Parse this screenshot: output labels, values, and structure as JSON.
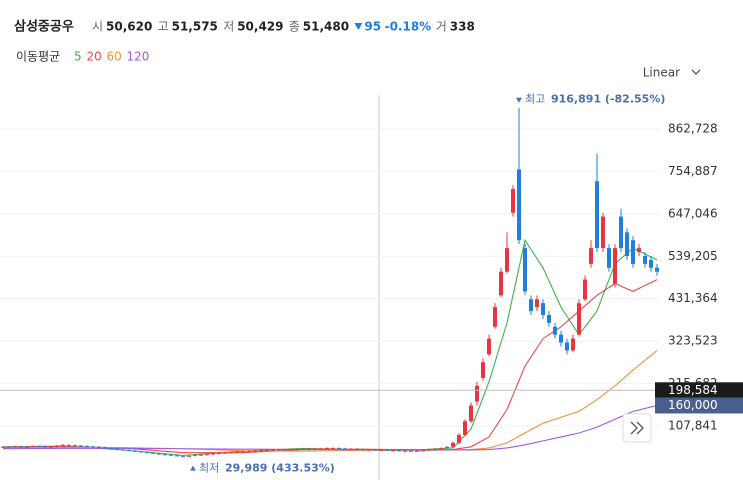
{
  "chart_data": {
    "type": "candlestick",
    "title": "삼성중공우",
    "quote": [
      {
        "label": "시",
        "value": "50,620"
      },
      {
        "label": "고",
        "value": "51,575"
      },
      {
        "label": "저",
        "value": "50,429"
      },
      {
        "label": "종",
        "value": "51,480"
      }
    ],
    "change": "95",
    "change_pct": "-0.18%",
    "volume_label": "거",
    "volume": "338",
    "ma_label": "이동평균",
    "scale_mode": "Linear",
    "max_label": "최고",
    "max_value_label": "916,891 (-82.55%)",
    "min_label": "최저",
    "min_value_label": "29,989 (433.53%)",
    "up_color": "#e8353f",
    "down_color": "#1f7fdc",
    "ylim": [
      -29411,
      949146
    ],
    "yticks": [
      {
        "value": 107841,
        "label": "107,841"
      },
      {
        "value": 215682,
        "label": "215,682"
      },
      {
        "value": 323523,
        "label": "323,523"
      },
      {
        "value": 431364,
        "label": "431,364"
      },
      {
        "value": 539205,
        "label": "539,205"
      },
      {
        "value": 647046,
        "label": "647,046"
      },
      {
        "value": 754887,
        "label": "754,887"
      },
      {
        "value": 862728,
        "label": "862,728"
      }
    ],
    "price_tags": [
      {
        "value": 198584,
        "label": "198,584",
        "color": "#1b1b1b"
      },
      {
        "value": 160000,
        "label": "160,000",
        "color": "#4a5f8f"
      }
    ],
    "open": [
      54000,
      55000,
      54000,
      56000,
      53000,
      55000,
      57000,
      56000,
      54000,
      55000,
      58000,
      60000,
      59000,
      58000,
      57000,
      56000,
      55000,
      54000,
      52000,
      50000,
      48000,
      47000,
      45000,
      43000,
      42000,
      40000,
      38000,
      36000,
      35000,
      33000,
      31000,
      30000,
      32000,
      34000,
      35000,
      36000,
      38000,
      39000,
      40000,
      41000,
      42000,
      43000,
      44000,
      45000,
      46000,
      47000,
      47000,
      48000,
      48000,
      49000,
      49000,
      50000,
      50000,
      51000,
      51000,
      52000,
      52000,
      51000,
      50000,
      50000,
      49000,
      48000,
      48000,
      47000,
      47000,
      46000,
      46000,
      45000,
      45000,
      44000,
      45000,
      46000,
      48000,
      50000,
      52000,
      55000,
      65000,
      85000,
      120000,
      170000,
      230000,
      290000,
      360000,
      440000,
      500000,
      650000,
      760000,
      560000,
      430000,
      410000,
      420000,
      390000,
      360000,
      340000,
      320000,
      300000,
      340000,
      430000,
      520000,
      730000,
      560000,
      560000,
      470000,
      640000,
      600000,
      580000,
      550000,
      540000,
      530000,
      510000
    ],
    "high": [
      56500,
      56500,
      57500,
      57500,
      56500,
      58500,
      58500,
      57500,
      56500,
      59500,
      61500,
      61500,
      60500,
      59500,
      58500,
      57500,
      56500,
      55500,
      53500,
      51500,
      49500,
      48500,
      46500,
      44500,
      43500,
      41500,
      39500,
      37500,
      36500,
      34500,
      32500,
      33500,
      35500,
      36500,
      37500,
      39500,
      40500,
      41500,
      42500,
      43500,
      44500,
      45500,
      46500,
      47500,
      48500,
      48500,
      49500,
      49500,
      50500,
      50500,
      51500,
      51500,
      52500,
      52500,
      53500,
      53500,
      53500,
      52500,
      51500,
      51500,
      50500,
      49500,
      49500,
      48500,
      48500,
      47500,
      47500,
      46500,
      46500,
      46500,
      47500,
      49500,
      51500,
      53500,
      56500,
      68000,
      90000,
      125000,
      168000,
      220000,
      280000,
      340000,
      420000,
      510000,
      600000,
      720000,
      916891,
      570000,
      440000,
      440000,
      430000,
      400000,
      370000,
      350000,
      330000,
      340000,
      430000,
      490000,
      580000,
      800000,
      650000,
      570000,
      570000,
      660000,
      610000,
      590000,
      570000,
      550000,
      540000,
      520000
    ],
    "low": [
      52500,
      52500,
      52500,
      51500,
      51500,
      53500,
      54500,
      52500,
      52500,
      53500,
      56500,
      57500,
      56500,
      55500,
      54500,
      53500,
      52500,
      50500,
      48500,
      46500,
      45500,
      43500,
      41500,
      40500,
      38500,
      36500,
      34500,
      33500,
      31500,
      30500,
      29989,
      30500,
      30500,
      32500,
      33500,
      34500,
      36500,
      37500,
      38500,
      39500,
      40500,
      41500,
      42500,
      43500,
      44500,
      45500,
      45500,
      46500,
      46500,
      47500,
      47500,
      48500,
      48500,
      49500,
      49500,
      50500,
      49500,
      48500,
      48500,
      47500,
      46500,
      46500,
      45500,
      45500,
      44500,
      44500,
      43500,
      43500,
      42500,
      42500,
      43500,
      44500,
      46500,
      48500,
      50500,
      52000,
      62000,
      82000,
      115000,
      160000,
      222000,
      285000,
      355000,
      435000,
      495000,
      640000,
      570000,
      440000,
      390000,
      400000,
      380000,
      360000,
      330000,
      310000,
      290000,
      295000,
      335000,
      425000,
      510000,
      550000,
      550000,
      500000,
      460000,
      550000,
      530000,
      510000,
      540000,
      510000,
      500000,
      490000
    ],
    "close": [
      55000,
      54000,
      56000,
      53000,
      55000,
      57000,
      56000,
      54000,
      55000,
      58000,
      60000,
      59000,
      58000,
      57000,
      56000,
      55000,
      54000,
      52000,
      50000,
      48000,
      47000,
      45000,
      43000,
      42000,
      40000,
      38000,
      36000,
      35000,
      33000,
      31000,
      30000,
      32000,
      34000,
      35000,
      36000,
      38000,
      39000,
      40000,
      41000,
      42000,
      43000,
      44000,
      45000,
      46000,
      47000,
      47000,
      48000,
      48000,
      49000,
      49000,
      50000,
      50000,
      51000,
      51000,
      52000,
      52000,
      51000,
      50000,
      50000,
      49000,
      48000,
      48000,
      47000,
      47000,
      46000,
      46000,
      45000,
      45000,
      44000,
      45000,
      46000,
      48000,
      50000,
      52000,
      55000,
      65000,
      85000,
      120000,
      160000,
      210000,
      270000,
      330000,
      410000,
      500000,
      560000,
      710000,
      580000,
      450000,
      400000,
      430000,
      390000,
      370000,
      340000,
      320000,
      300000,
      330000,
      420000,
      480000,
      560000,
      560000,
      640000,
      510000,
      560000,
      560000,
      540000,
      520000,
      560000,
      520000,
      510000,
      500000
    ],
    "ma_x": [
      0,
      10,
      20,
      30,
      40,
      50,
      60,
      70,
      75,
      78,
      81,
      84,
      87,
      90,
      93,
      96,
      99,
      102,
      105,
      109
    ],
    "series": [
      {
        "name": "5",
        "color": "#3cb34a",
        "values": [
          55000,
          57000,
          47000,
          33000,
          44000,
          51000,
          47000,
          48000,
          52000,
          100000,
          220000,
          370000,
          580000,
          510000,
          410000,
          340000,
          400000,
          520000,
          560000,
          530000
        ]
      },
      {
        "name": "20",
        "color": "#e84a4a",
        "values": [
          54000,
          56000,
          52000,
          40000,
          40000,
          48000,
          49000,
          47000,
          48000,
          55000,
          80000,
          150000,
          260000,
          330000,
          360000,
          400000,
          440000,
          470000,
          450000,
          480000
        ]
      },
      {
        "name": "60",
        "color": "#f0923a",
        "values": [
          52000,
          53000,
          53000,
          50000,
          45000,
          44000,
          46000,
          46000,
          47000,
          48000,
          52000,
          65000,
          90000,
          115000,
          130000,
          145000,
          175000,
          210000,
          250000,
          300000
        ]
      },
      {
        "name": "120",
        "color": "#9b59e6",
        "values": [
          50000,
          51000,
          51000,
          50000,
          49000,
          48000,
          48000,
          47000,
          47000,
          47000,
          48000,
          52000,
          60000,
          70000,
          80000,
          90000,
          105000,
          125000,
          145000,
          160000
        ]
      }
    ]
  }
}
